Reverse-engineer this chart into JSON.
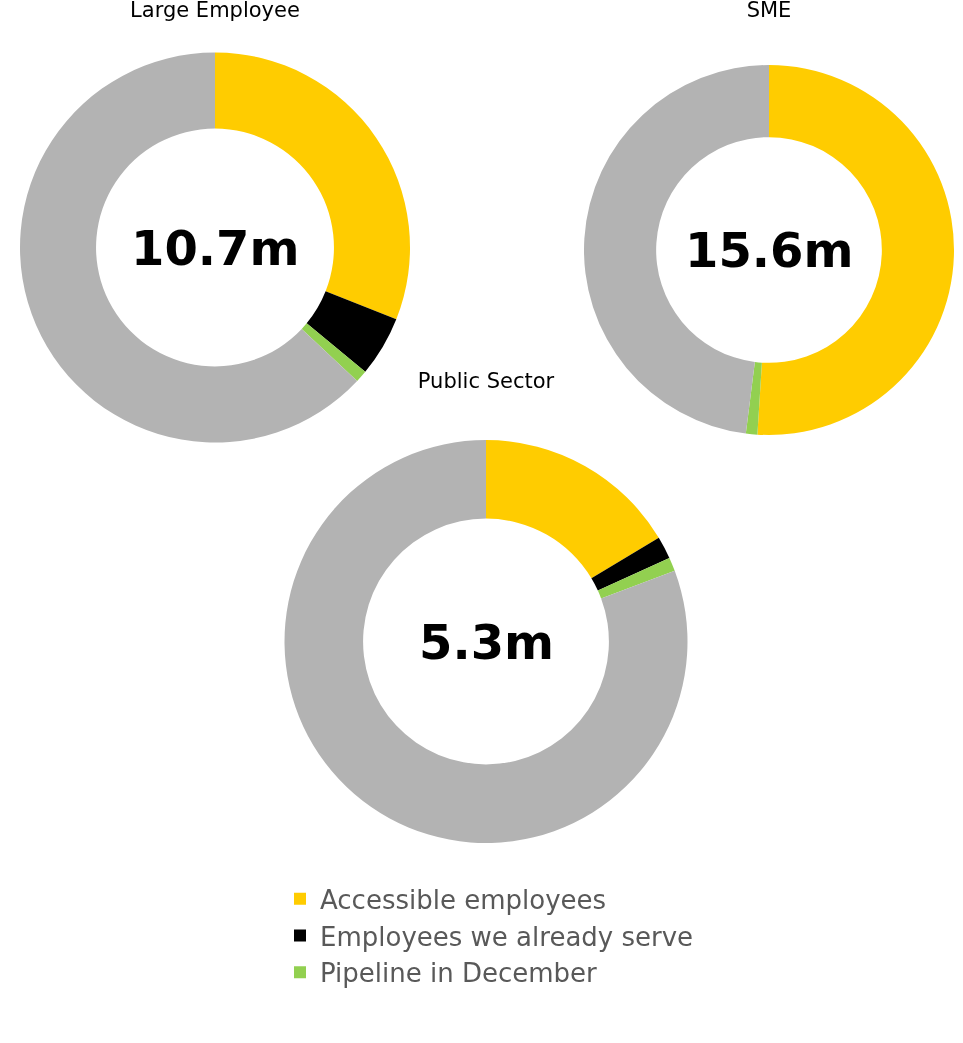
{
  "chart_data": [
    {
      "type": "donut",
      "title": "Large Employee",
      "categories": [
        null,
        null,
        null,
        null
      ],
      "values": [
        31,
        5,
        1,
        63
      ],
      "colors": [
        "#ffcc00",
        "#000000",
        "#92d050",
        "#b3b3b3"
      ],
      "annotations": [
        "10.7m"
      ],
      "legend": false
    },
    {
      "type": "donut",
      "title": "SME",
      "categories": [
        null,
        null,
        null,
        null
      ],
      "values": [
        51,
        0,
        1,
        48
      ],
      "colors": [
        "#ffcc00",
        "#000000",
        "#92d050",
        "#b3b3b3"
      ],
      "annotations": [
        "15.6m"
      ],
      "legend": false
    },
    {
      "type": "donut",
      "title": "Public Sector",
      "categories": [
        "Accessible employees",
        "Employees we already serve",
        "Pipeline in December",
        null
      ],
      "values": [
        16.4,
        1.8,
        1.1,
        80.7
      ],
      "colors": [
        "#ffcc00",
        "#000000",
        "#92d050",
        "#b3b3b3"
      ],
      "annotations": [
        "5.3m"
      ],
      "legend": "bottom"
    }
  ]
}
